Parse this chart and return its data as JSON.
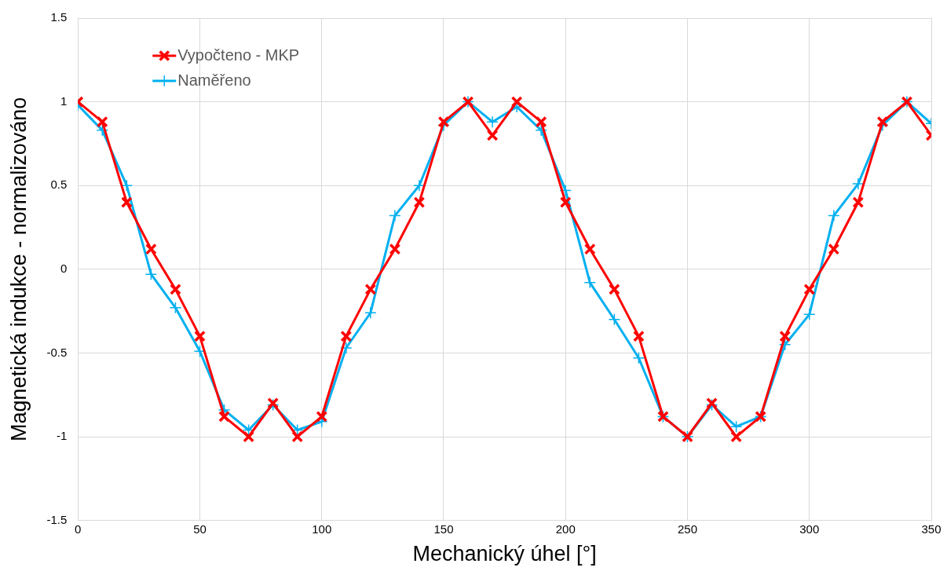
{
  "chart_data": {
    "type": "line",
    "xlabel": "Mechanický úhel [°]",
    "ylabel": "Magnetická indukce - normalizováno",
    "x": [
      0,
      10,
      20,
      30,
      40,
      50,
      60,
      70,
      80,
      90,
      100,
      110,
      120,
      130,
      140,
      150,
      160,
      170,
      180,
      190,
      200,
      210,
      220,
      230,
      240,
      250,
      260,
      270,
      280,
      290,
      300,
      310,
      320,
      330,
      340,
      350
    ],
    "series": [
      {
        "name": "Vypočteno - MKP",
        "color": "#ff0000",
        "marker": "cross",
        "values": [
          1,
          0.88,
          0.4,
          0.12,
          -0.12,
          -0.4,
          -0.88,
          -1,
          -0.8,
          -1,
          -0.88,
          -0.4,
          -0.12,
          0.12,
          0.4,
          0.88,
          1,
          0.8,
          1,
          0.88,
          0.4,
          0.12,
          -0.12,
          -0.4,
          -0.88,
          -1,
          -0.8,
          -1,
          -0.88,
          -0.4,
          -0.12,
          0.12,
          0.4,
          0.88,
          1,
          0.8
        ]
      },
      {
        "name": "Naměřeno",
        "color": "#00b0f0",
        "marker": "plus",
        "values": [
          0.98,
          0.83,
          0.5,
          -0.03,
          -0.23,
          -0.49,
          -0.84,
          -0.96,
          -0.81,
          -0.96,
          -0.91,
          -0.47,
          -0.26,
          0.32,
          0.5,
          0.86,
          1,
          0.88,
          0.97,
          0.83,
          0.47,
          -0.08,
          -0.3,
          -0.53,
          -0.88,
          -1,
          -0.81,
          -0.94,
          -0.88,
          -0.45,
          -0.27,
          0.32,
          0.51,
          0.86,
          1,
          0.87
        ]
      }
    ],
    "xlim": [
      0,
      350
    ],
    "xticks": [
      0,
      50,
      100,
      150,
      200,
      250,
      300,
      350
    ],
    "ylim": [
      -1.5,
      1.5
    ],
    "yticks": [
      -1.5,
      -1,
      -0.5,
      0,
      0.5,
      1,
      1.5
    ],
    "grid": true,
    "legend": "top left",
    "line_style": "solid"
  }
}
